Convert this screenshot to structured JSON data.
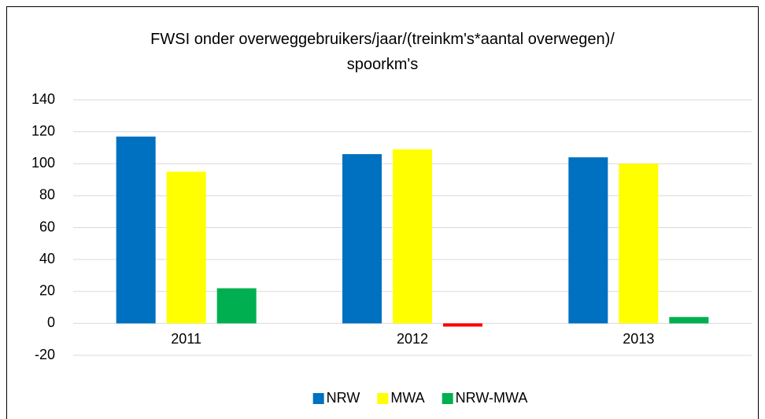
{
  "chart_data": {
    "type": "bar",
    "title": "FWSI onder overweggebruikers/jaar/(treinkm's*aantal overwegen)/ spoorkm's",
    "categories": [
      "2011",
      "2012",
      "2013"
    ],
    "series": [
      {
        "name": "NRW",
        "color": "#0070c0",
        "values": [
          117,
          106,
          104
        ]
      },
      {
        "name": "MWA",
        "color": "#ffff00",
        "values": [
          95,
          109,
          100
        ]
      },
      {
        "name": "NRW-MWA",
        "color": "#00b050",
        "point_colors": [
          "#00b050",
          "#ff0000",
          "#00b050"
        ],
        "values": [
          22,
          -2,
          4
        ]
      }
    ],
    "ylim": [
      -20,
      140
    ],
    "yticks": [
      -20,
      0,
      20,
      40,
      60,
      80,
      100,
      120,
      140
    ],
    "grid": true,
    "legend": "bottom"
  }
}
